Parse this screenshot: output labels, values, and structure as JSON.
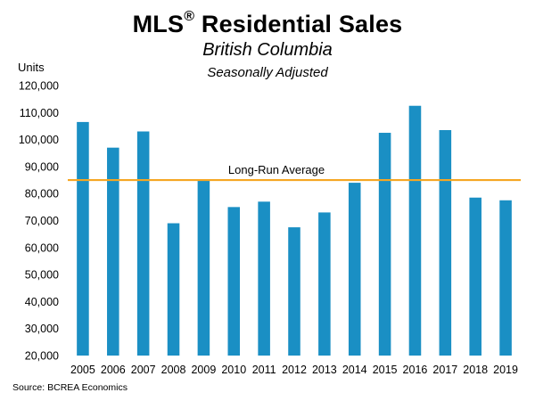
{
  "header": {
    "title_main": "MLS",
    "title_mark": "®",
    "title_rest": " Residential Sales",
    "subtitle": "British Columbia",
    "subtitle2": "Seasonally Adjusted"
  },
  "footer": {
    "source": "Source: BCREA Economics"
  },
  "chart_data": {
    "type": "bar",
    "title": "MLS® Residential Sales",
    "subtitle": "British Columbia — Seasonally Adjusted",
    "ylabel": "Units",
    "xlabel": "",
    "ylim": [
      20000,
      120000
    ],
    "yticks": [
      20000,
      30000,
      40000,
      50000,
      60000,
      70000,
      80000,
      90000,
      100000,
      110000,
      120000
    ],
    "ytick_labels": [
      "20,000",
      "30,000",
      "40,000",
      "50,000",
      "60,000",
      "70,000",
      "80,000",
      "90,000",
      "100,000",
      "110,000",
      "120,000"
    ],
    "categories": [
      "2005",
      "2006",
      "2007",
      "2008",
      "2009",
      "2010",
      "2011",
      "2012",
      "2013",
      "2014",
      "2015",
      "2016",
      "2017",
      "2018",
      "2019"
    ],
    "values": [
      106500,
      97000,
      103000,
      69000,
      85000,
      75000,
      77000,
      67500,
      73000,
      84000,
      102500,
      112500,
      103500,
      78500,
      77500
    ],
    "reference_line": {
      "label": "Long-Run Average",
      "value": 85000,
      "color": "#F5A623"
    },
    "bar_color": "#1A8FC4",
    "grid": false,
    "legend": "none"
  }
}
